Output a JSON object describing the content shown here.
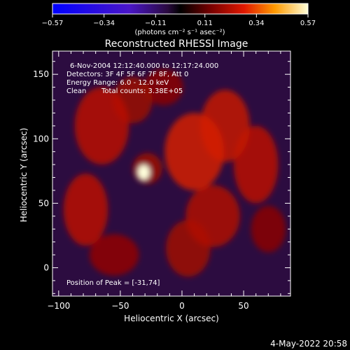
{
  "chart_data": {
    "type": "heatmap",
    "title": "Reconstructed RHESSI Image",
    "xlabel": "Heliocentric X (arcsec)",
    "ylabel": "Heliocentric Y (arcsec)",
    "xlim": [
      -105,
      88
    ],
    "ylim": [
      -22,
      168
    ],
    "x_ticks": [
      -100,
      -50,
      0,
      50
    ],
    "y_ticks": [
      0,
      50,
      100,
      150
    ],
    "colorbar": {
      "range": [
        -0.57,
        0.57
      ],
      "tick_values": [
        -0.57,
        -0.34,
        -0.11,
        0.11,
        0.34,
        0.57
      ],
      "tick_labels": [
        "-0.57",
        "-0.34",
        "-0.11",
        "0.11",
        "0.34",
        "0.57"
      ],
      "unit_label": "(photons cm⁻² s⁻¹ asec⁻²)",
      "colormap": "rhessi-fire"
    },
    "annotations": {
      "time_range": "6-Nov-2004 12:12:40.000 to 12:17:24.000",
      "detectors": "Detectors: 3F 4F 5F 6F 7F 8F, Att 0",
      "energy_range": "Energy Range: 6.0 - 12.0 keV",
      "method": "Clean",
      "total_counts": "Total counts: 3.38E+05",
      "peak": "Position of Peak = [-31,74]"
    },
    "peak_position": [
      -31,
      74
    ],
    "peak_value": 0.57,
    "background_value": -0.11,
    "emission_sources": [
      {
        "x": -31,
        "y": 74,
        "sx": 5,
        "sy": 6,
        "value": 0.68
      },
      {
        "x": -28,
        "y": 77,
        "sx": 12,
        "sy": 12,
        "value": 0.14
      },
      {
        "x": -65,
        "y": 110,
        "sx": 22,
        "sy": 30,
        "value": 0.2
      },
      {
        "x": -78,
        "y": 45,
        "sx": 18,
        "sy": 28,
        "value": 0.2
      },
      {
        "x": -55,
        "y": 10,
        "sx": 20,
        "sy": 16,
        "value": 0.12
      },
      {
        "x": -40,
        "y": 130,
        "sx": 16,
        "sy": 18,
        "value": 0.14
      },
      {
        "x": 10,
        "y": 90,
        "sx": 24,
        "sy": 30,
        "value": 0.25
      },
      {
        "x": 35,
        "y": 110,
        "sx": 20,
        "sy": 28,
        "value": 0.22
      },
      {
        "x": 60,
        "y": 80,
        "sx": 18,
        "sy": 30,
        "value": 0.2
      },
      {
        "x": 25,
        "y": 40,
        "sx": 22,
        "sy": 24,
        "value": 0.18
      },
      {
        "x": 5,
        "y": 15,
        "sx": 18,
        "sy": 22,
        "value": 0.15
      },
      {
        "x": -15,
        "y": 140,
        "sx": 16,
        "sy": 14,
        "value": 0.1
      },
      {
        "x": 70,
        "y": 30,
        "sx": 14,
        "sy": 18,
        "value": 0.1
      }
    ]
  },
  "footer": {
    "date": "4-May-2022 20:58"
  }
}
